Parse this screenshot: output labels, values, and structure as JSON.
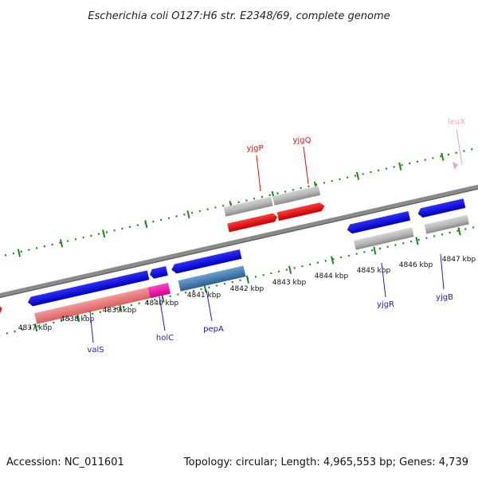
{
  "title": "Escherichia coli O127:H6 str. E2348/69, complete genome",
  "footer": {
    "accession": "Accession: NC_011601",
    "summary": "Topology: circular; Length: 4,965,553 bp; Genes: 4,739"
  },
  "ruler": {
    "labels": [
      "4837 kbp",
      "4838 kbp",
      "4839 kbp",
      "4840 kbp",
      "4841 kbp",
      "4842 kbp",
      "4843 kbp",
      "4844 kbp",
      "4845 kbp",
      "4846 kbp",
      "4847 kbp"
    ],
    "tick_color": "#1a8a1a"
  },
  "genes": [
    {
      "name": "valS",
      "color": "#1a1acc"
    },
    {
      "name": "holC",
      "color": "#1a1acc"
    },
    {
      "name": "pepA",
      "color": "#1a1acc"
    },
    {
      "name": "yjgP",
      "color": "#dd1111"
    },
    {
      "name": "yjgQ",
      "color": "#dd1111"
    },
    {
      "name": "yjgR",
      "color": "#1a1acc"
    },
    {
      "name": "yjgB",
      "color": "#1a1acc"
    },
    {
      "name": "leuX",
      "color": "#f4a0c8"
    }
  ],
  "colors": {
    "forward_cds": "#ee1111",
    "reverse_cds": "#1010dd",
    "gene_grey": "#bbbbbb",
    "valS_rna": "#f07e7e",
    "holC_rna": "#ee22aa",
    "pepA_rna": "#4a7fb0",
    "backbone": "#888888"
  }
}
